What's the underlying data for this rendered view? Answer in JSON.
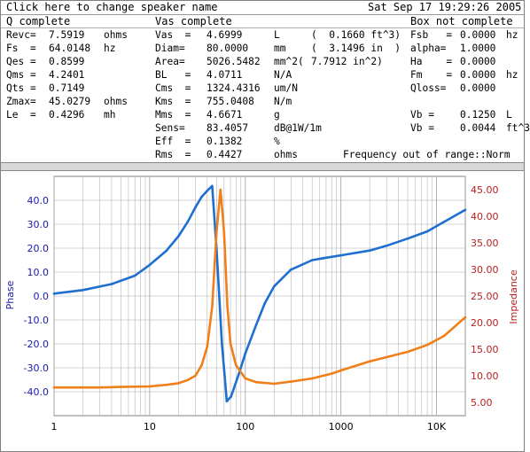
{
  "titlebar": {
    "speaker_prompt": "Click here to change speaker name",
    "datetime": "Sat Sep 17 19:29:26 2005"
  },
  "sections": {
    "q": "Q complete",
    "vas": "Vas complete",
    "box": "Box not complete"
  },
  "q_params": [
    {
      "name": "Revc=",
      "value": "7.5919",
      "unit": "ohms"
    },
    {
      "name": "Fs  =",
      "value": "64.0148",
      "unit": "hz"
    },
    {
      "name": "Qes =",
      "value": "0.8599",
      "unit": ""
    },
    {
      "name": "Qms =",
      "value": "4.2401",
      "unit": ""
    },
    {
      "name": "Qts =",
      "value": "0.7149",
      "unit": ""
    },
    {
      "name": "Zmax=",
      "value": "45.0279",
      "unit": "ohms"
    },
    {
      "name": "Le  =",
      "value": "0.4296",
      "unit": "mh"
    }
  ],
  "vas_params": [
    {
      "name": "Vas  =",
      "value": "4.6999",
      "unit": "L",
      "alt": "(  0.1660 ft^3)"
    },
    {
      "name": "Diam=",
      "value": "80.0000",
      "unit": "mm",
      "alt": "(  3.1496 in  )"
    },
    {
      "name": "Area=",
      "value": "5026.5482",
      "unit": "mm^2(",
      "alt": "7.7912 in^2)"
    },
    {
      "name": "BL   =",
      "value": "4.0711",
      "unit": "N/A",
      "alt": ""
    },
    {
      "name": "Cms  =",
      "value": "1324.4316",
      "unit": "um/N",
      "alt": ""
    },
    {
      "name": "Kms  =",
      "value": "755.0408",
      "unit": "N/m",
      "alt": ""
    },
    {
      "name": "Mms  =",
      "value": "4.6671",
      "unit": "g",
      "alt": ""
    },
    {
      "name": "Sens=",
      "value": "83.4057",
      "unit": "dB@1W/1m",
      "alt": ""
    },
    {
      "name": "Eff  =",
      "value": "0.1382",
      "unit": "%",
      "alt": ""
    },
    {
      "name": "Rms  =",
      "value": "0.4427",
      "unit": "ohms",
      "alt": ""
    }
  ],
  "box_params": [
    {
      "name": "Fsb   =",
      "value": "0.0000",
      "unit": "hz"
    },
    {
      "name": "alpha=",
      "value": "1.0000",
      "unit": ""
    },
    {
      "name": "Ha    =",
      "value": "0.0000",
      "unit": ""
    },
    {
      "name": "Fm    =",
      "value": "0.0000",
      "unit": "hz"
    },
    {
      "name": "Qloss=",
      "value": "0.0000",
      "unit": ""
    }
  ],
  "vb_params": [
    {
      "name": "Vb =",
      "value": "0.1250",
      "unit": "L"
    },
    {
      "name": "Vb =",
      "value": "0.0044",
      "unit": "ft^3"
    }
  ],
  "status": "Frequency out of range::Norm",
  "colors": {
    "phase": "#1f6fd0",
    "impedance": "#f07f1a",
    "left_axis": "#1a1aa6",
    "right_axis": "#b81e1e",
    "grid": "#a8a8a8"
  },
  "chart_data": {
    "type": "line",
    "xscale": "log",
    "xlim": [
      1,
      20000
    ],
    "x_ticks": [
      "1",
      "10",
      "100",
      "1000",
      "10K"
    ],
    "y_left": {
      "label": "Phase",
      "lim": [
        -50,
        50
      ],
      "ticks": [
        "40.0",
        "30.0",
        "20.0",
        "10.0",
        "0.0",
        "-10.0",
        "-20.0",
        "-30.0",
        "-40.0"
      ]
    },
    "y_right": {
      "label": "Impedance",
      "lim": [
        2.5,
        47.5
      ],
      "ticks": [
        "45.00",
        "40.00",
        "35.00",
        "30.00",
        "25.00",
        "20.00",
        "15.00",
        "10.00",
        "5.00"
      ]
    },
    "series": [
      {
        "axis": "left",
        "x": [
          1,
          2,
          4,
          7,
          10,
          15,
          20,
          25,
          30,
          35,
          40,
          45,
          50,
          57,
          64,
          71,
          85,
          100,
          130,
          160,
          200,
          300,
          500,
          700,
          1000,
          2000,
          3000,
          5000,
          8000,
          12000,
          20000
        ],
        "values": [
          1,
          2.5,
          5,
          8.5,
          13,
          19,
          25,
          31,
          37,
          41.5,
          44,
          46,
          20,
          -20,
          -44,
          -42,
          -33,
          -24,
          -12,
          -3,
          4,
          11,
          15,
          16,
          17,
          19,
          21,
          24,
          27,
          31,
          36
        ]
      },
      {
        "axis": "right",
        "x": [
          1,
          3,
          5,
          10,
          15,
          20,
          25,
          30,
          35,
          40,
          45,
          50,
          55,
          60,
          65,
          70,
          80,
          100,
          130,
          200,
          300,
          500,
          800,
          1000,
          1500,
          2000,
          3000,
          5000,
          8000,
          12000,
          20000
        ],
        "values": [
          7.8,
          7.8,
          7.9,
          8,
          8.3,
          8.6,
          9.2,
          10,
          12,
          15.5,
          23,
          37,
          45,
          37,
          23,
          16,
          12,
          9.5,
          8.8,
          8.5,
          8.9,
          9.5,
          10.4,
          11,
          12,
          12.7,
          13.5,
          14.5,
          15.8,
          17.5,
          21
        ]
      }
    ]
  }
}
